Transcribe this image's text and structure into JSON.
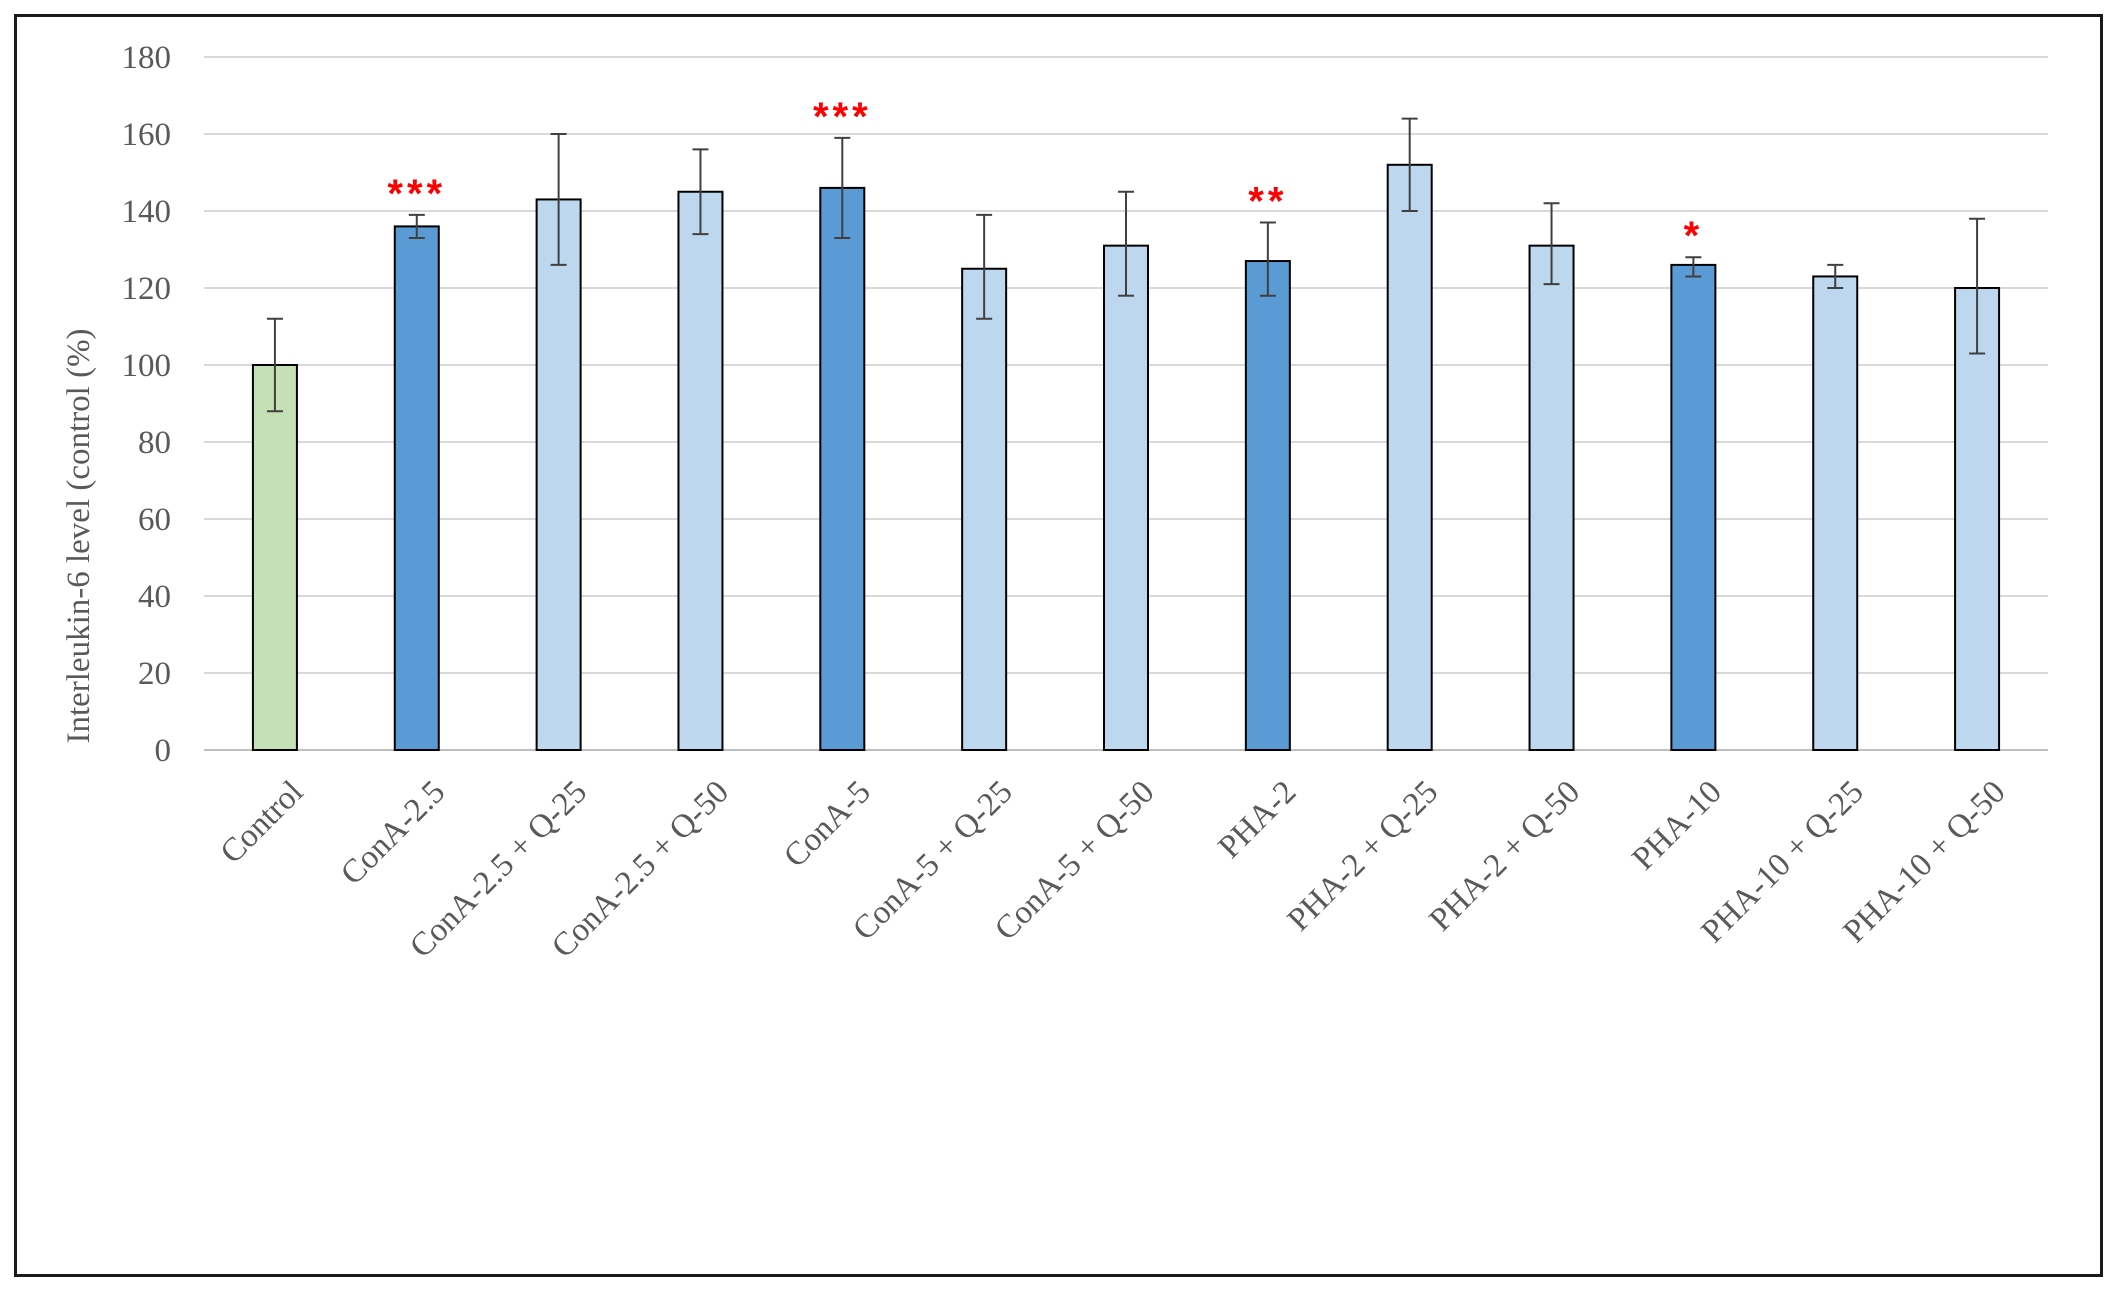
{
  "chart_data": {
    "type": "bar",
    "title": "",
    "xlabel": "",
    "ylabel": "Interleukin-6 level (control (%)",
    "ylim": [
      0,
      180
    ],
    "yticks": [
      0,
      20,
      40,
      60,
      80,
      100,
      120,
      140,
      160,
      180
    ],
    "grid": true,
    "legend": "none",
    "categories": [
      "Control",
      "ConA-2.5",
      "ConA-2.5 + Q-25",
      "ConA-2.5 + Q-50",
      "ConA-5",
      "ConA-5 + Q-25",
      "ConA-5 + Q-50",
      "PHA-2",
      "PHA-2 + Q-25",
      "PHA-2 + Q-50",
      "PHA-10",
      "PHA-10 + Q-25",
      "PHA-10 + Q-50"
    ],
    "values": [
      100,
      136,
      143,
      145,
      146,
      125,
      131,
      127,
      152,
      131,
      126,
      123,
      120
    ],
    "error_upper": [
      112,
      139,
      160,
      156,
      159,
      139,
      145,
      137,
      164,
      142,
      128,
      126,
      138
    ],
    "error_lower": [
      88,
      133,
      126,
      134,
      133,
      112,
      118,
      118,
      140,
      121,
      123,
      120,
      103
    ],
    "significance": [
      "",
      "***",
      "",
      "",
      "***",
      "",
      "",
      "**",
      "",
      "",
      "*",
      "",
      ""
    ],
    "bar_fill": [
      "#c5e0b4",
      "#5b9bd5",
      "#bdd7ee",
      "#bdd7ee",
      "#5b9bd5",
      "#bdd7ee",
      "#bdd7ee",
      "#5b9bd5",
      "#bdd7ee",
      "#bdd7ee",
      "#5b9bd5",
      "#bdd7ee",
      "#bdd7ee"
    ],
    "colors": {
      "control": "#c5e0b4",
      "treatment": "#5b9bd5",
      "treatment_with_q": "#bdd7ee",
      "significance": "#ff0000",
      "gridline": "#d9d9d9"
    }
  }
}
